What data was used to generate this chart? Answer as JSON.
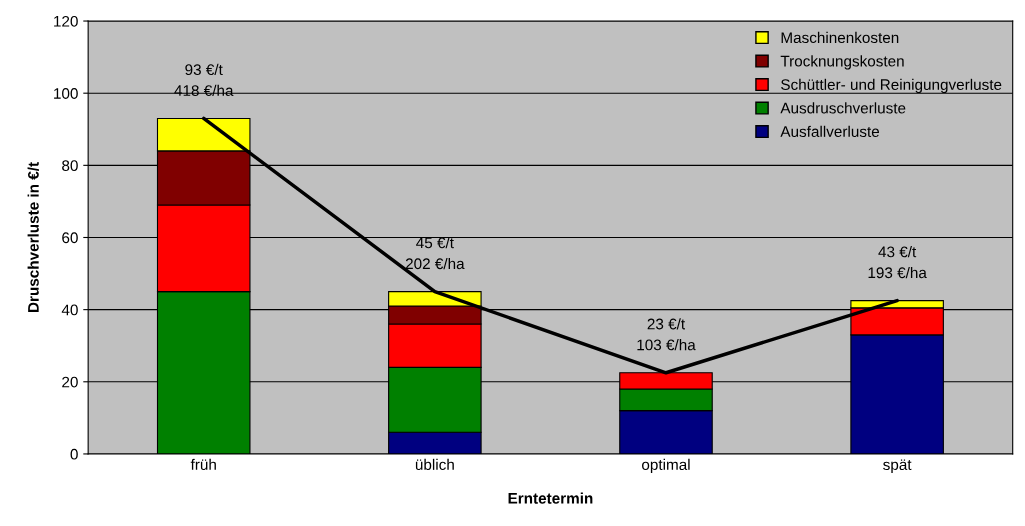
{
  "chart_data": {
    "type": "bar",
    "stacked": true,
    "xlabel": "Erntetermin",
    "ylabel": "Druschverluste in €/t",
    "categories": [
      "früh",
      "üblich",
      "optimal",
      "spät"
    ],
    "series": [
      {
        "name": "Ausfallverluste",
        "color": "#000080",
        "values": [
          0,
          6,
          12,
          33
        ]
      },
      {
        "name": "Ausdruschverluste",
        "color": "#008000",
        "values": [
          45,
          18,
          6,
          0
        ]
      },
      {
        "name": "Schüttler- und Reinigungverluste",
        "color": "#ff0000",
        "values": [
          24,
          12,
          4.5,
          7.5
        ]
      },
      {
        "name": "Trocknungskosten",
        "color": "#800000",
        "values": [
          15,
          5,
          0,
          0
        ]
      },
      {
        "name": "Maschinenkosten",
        "color": "#ffff00",
        "values": [
          9,
          4,
          0,
          2
        ]
      },
      {
        "type": "line",
        "color": "#000000",
        "values": [
          93,
          45,
          22.5,
          42.5
        ]
      }
    ],
    "annotations": [
      {
        "text": "93 €/t\n418 €/ha",
        "x": "früh",
        "y": 93
      },
      {
        "text": "45 €/t\n202 €/ha",
        "x": "üblich",
        "y": 45
      },
      {
        "text": "23 €/t\n103 €/ha",
        "x": "optimal",
        "y": 22.5
      },
      {
        "text": "43 €/t\n193 €/ha",
        "x": "spät",
        "y": 42.5
      }
    ],
    "ylim": [
      0,
      120
    ],
    "yticks": [
      0,
      20,
      40,
      60,
      80,
      100,
      120
    ],
    "grid": "y",
    "legend": "top right"
  }
}
